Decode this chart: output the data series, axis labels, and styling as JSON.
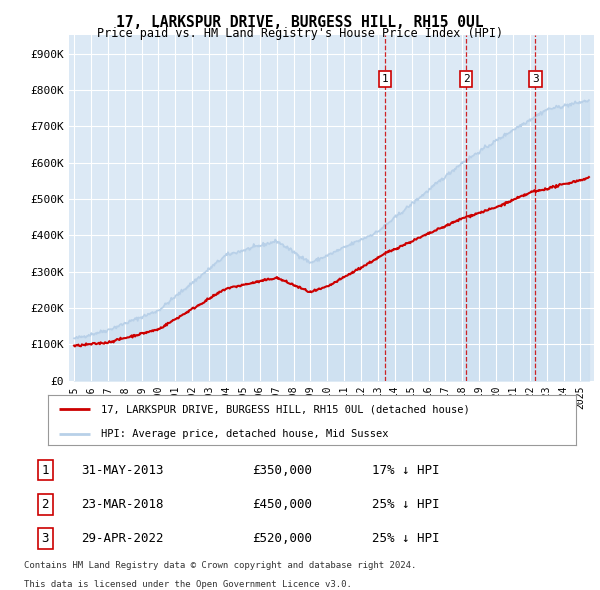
{
  "title1": "17, LARKSPUR DRIVE, BURGESS HILL, RH15 0UL",
  "title2": "Price paid vs. HM Land Registry's House Price Index (HPI)",
  "ylabel_ticks": [
    "£0",
    "£100K",
    "£200K",
    "£300K",
    "£400K",
    "£500K",
    "£600K",
    "£700K",
    "£800K",
    "£900K"
  ],
  "ytick_values": [
    0,
    100000,
    200000,
    300000,
    400000,
    500000,
    600000,
    700000,
    800000,
    900000
  ],
  "ylim": [
    0,
    950000
  ],
  "xlim_start": 1994.7,
  "xlim_end": 2025.8,
  "hpi_color": "#b8d0e8",
  "hpi_fill_color": "#ccdff0",
  "price_color": "#cc0000",
  "sale1_date": "31-MAY-2013",
  "sale1_price": 350000,
  "sale1_pct": "17%",
  "sale2_date": "23-MAR-2018",
  "sale2_price": 450000,
  "sale2_pct": "25%",
  "sale3_date": "29-APR-2022",
  "sale3_price": 520000,
  "sale3_pct": "25%",
  "sale1_x": 2013.42,
  "sale2_x": 2018.23,
  "sale3_x": 2022.33,
  "legend_label1": "17, LARKSPUR DRIVE, BURGESS HILL, RH15 0UL (detached house)",
  "legend_label2": "HPI: Average price, detached house, Mid Sussex",
  "footnote1": "Contains HM Land Registry data © Crown copyright and database right 2024.",
  "footnote2": "This data is licensed under the Open Government Licence v3.0.",
  "background_color": "#dce9f5",
  "white": "#ffffff"
}
